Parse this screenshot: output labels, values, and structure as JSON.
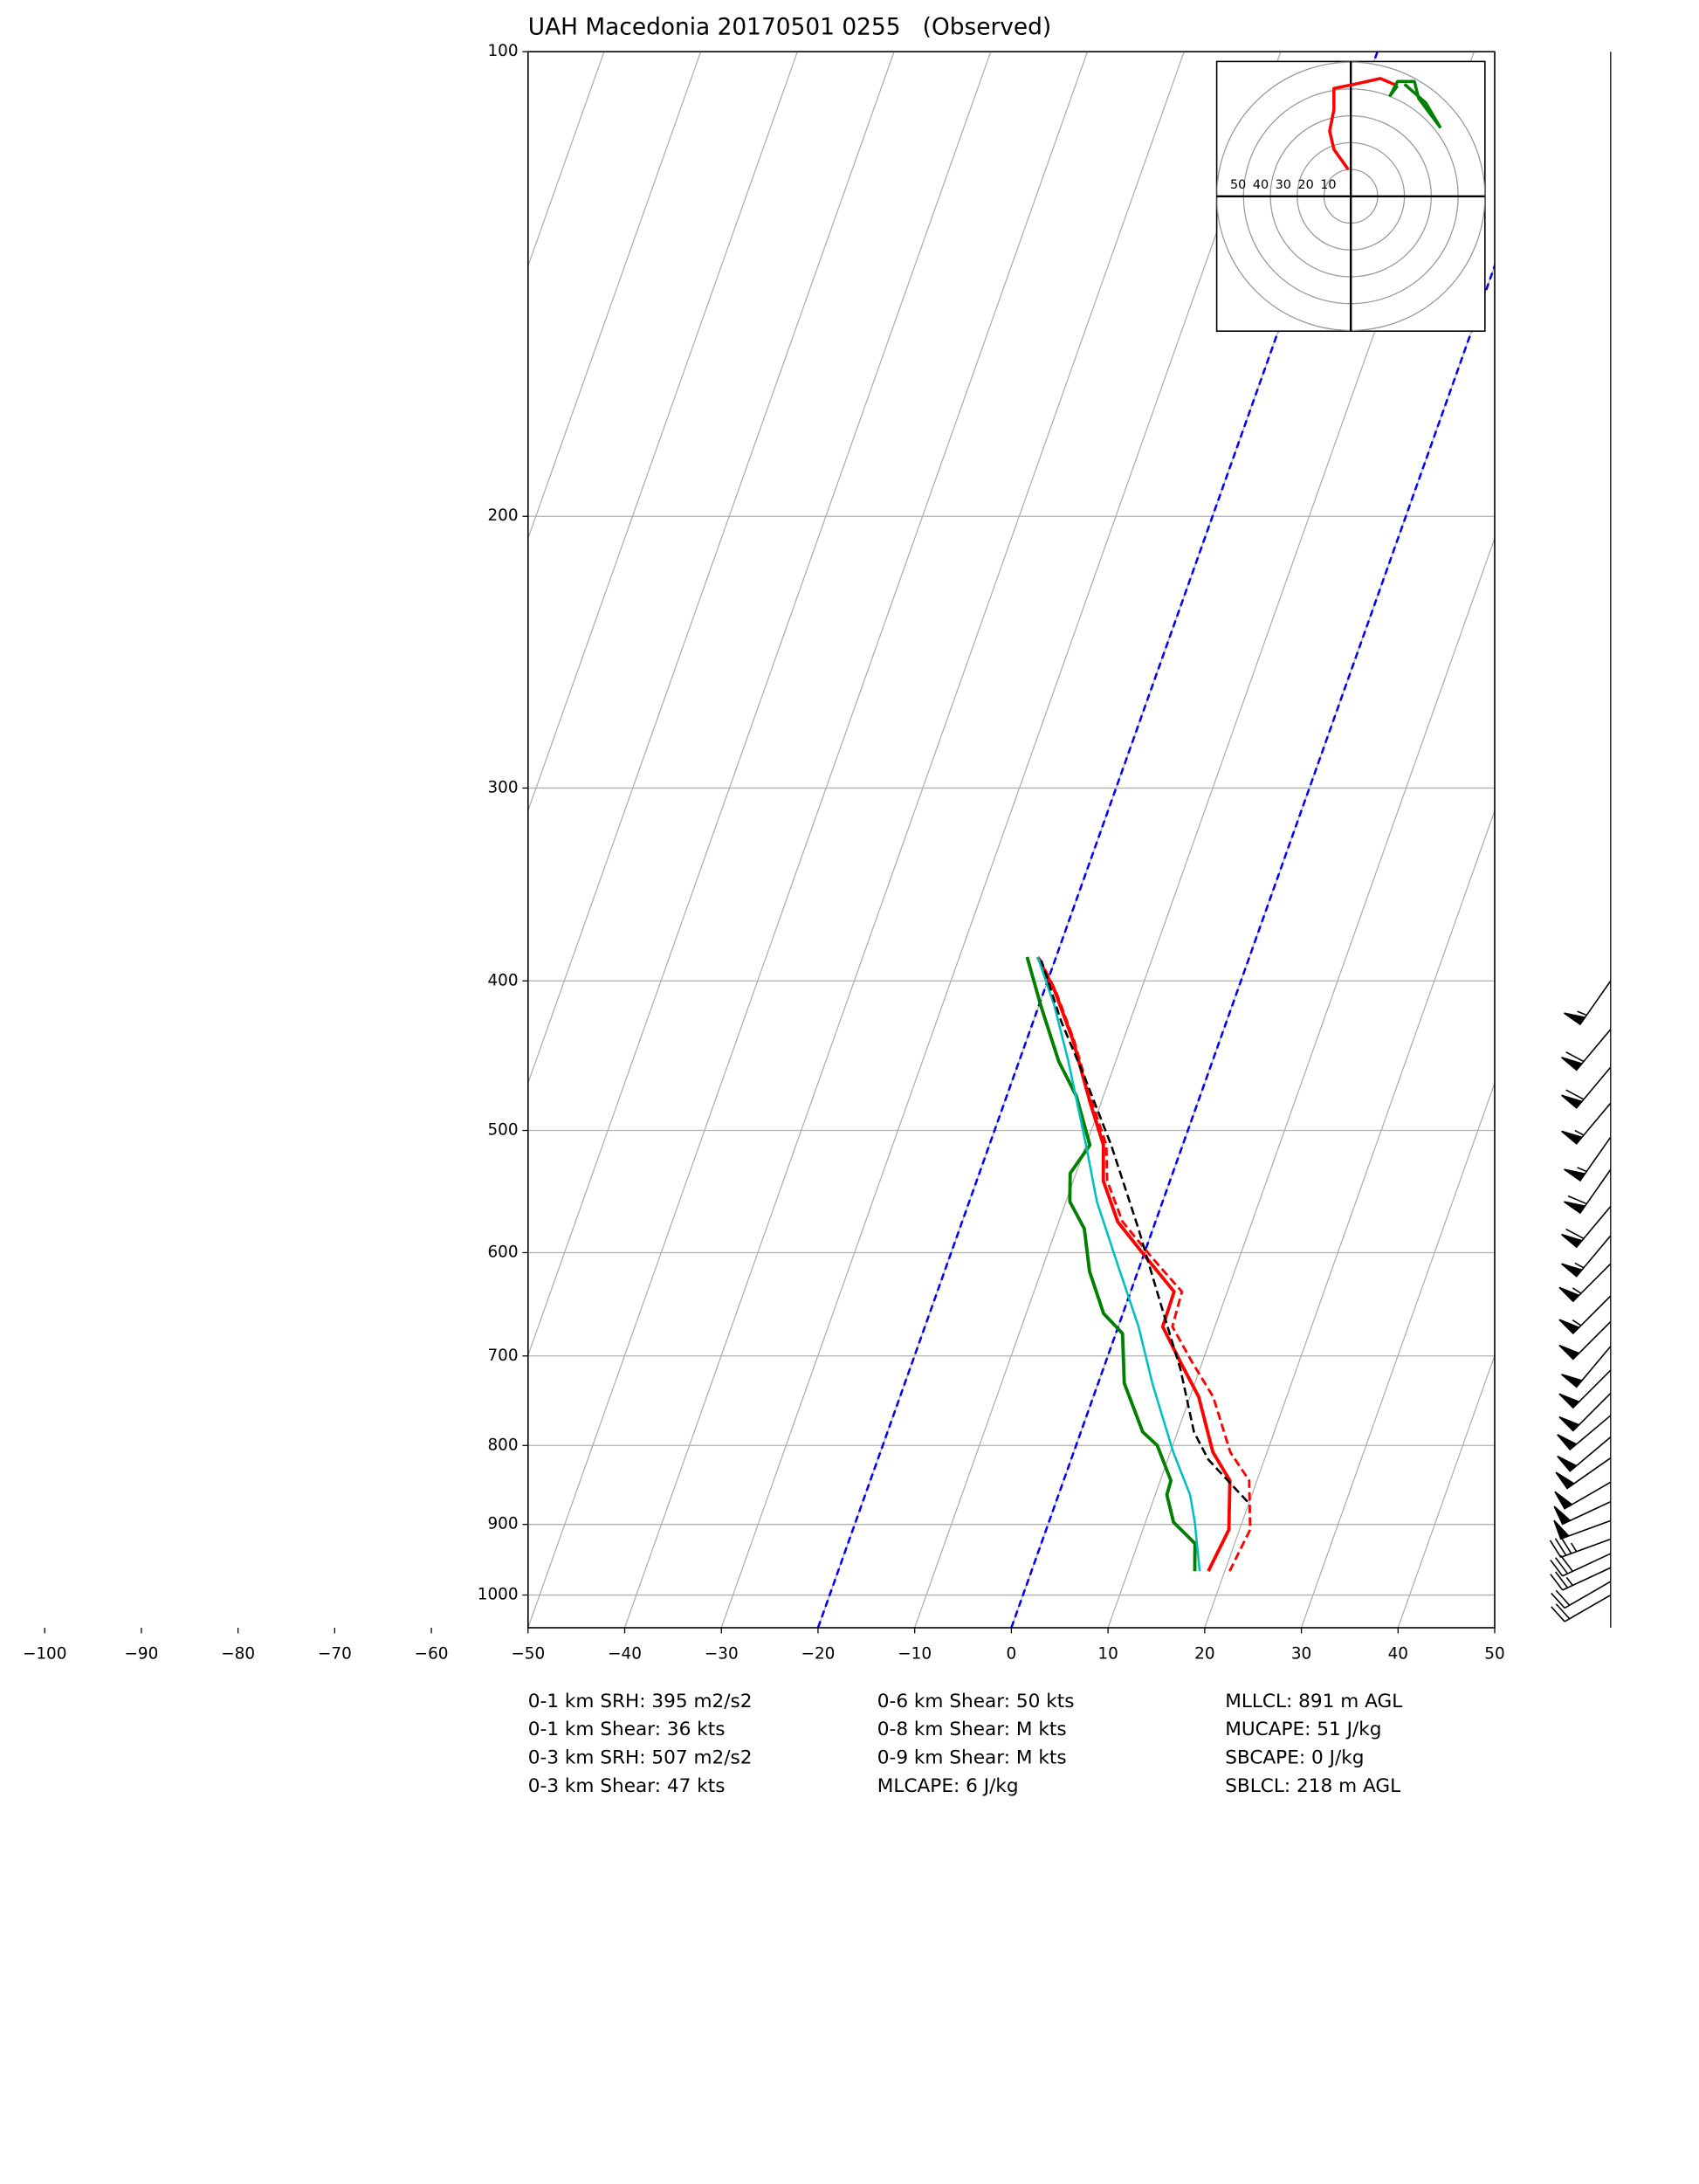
{
  "chart_data": {
    "type": "skewt",
    "title": "UAH Macedonia 20170501 0255   (Observed)",
    "xlim": [
      -50,
      50
    ],
    "ylim": [
      1050,
      100
    ],
    "log_scale_y": true,
    "grid": true,
    "xticks": [
      {
        "value": -100,
        "label": "−100"
      },
      {
        "value": -90,
        "label": "−90"
      },
      {
        "value": -80,
        "label": "−80"
      },
      {
        "value": -70,
        "label": "−70"
      },
      {
        "value": -60,
        "label": "−60"
      },
      {
        "value": -50,
        "label": "−50"
      },
      {
        "value": -40,
        "label": "−40"
      },
      {
        "value": -30,
        "label": "−30"
      },
      {
        "value": -20,
        "label": "−20"
      },
      {
        "value": -10,
        "label": "−10"
      },
      0,
      10,
      20,
      30,
      40,
      50
    ],
    "yticks": [
      100,
      200,
      300,
      400,
      500,
      600,
      700,
      800,
      900,
      1000
    ],
    "special_isotherms": {
      "values": [
        -20,
        0
      ],
      "color": "#0000ff"
    },
    "series": [
      {
        "color": "#ff0000",
        "dash": false,
        "width": 2.4,
        "pressure": [
          965,
          907,
          843,
          808,
          744,
          706,
          670,
          636,
          604,
          573,
          539,
          511,
          480,
          437,
          406,
          386
        ],
        "values": [
          18.3,
          18.9,
          17.2,
          14.4,
          10.9,
          7.7,
          4.6,
          4.5,
          0.3,
          -3.9,
          -6.9,
          -8.2,
          -11.1,
          -15.2,
          -18.9,
          -21.9
        ]
      },
      {
        "color": "#ff0000",
        "dash": true,
        "width": 1.8,
        "pressure": [
          965,
          907,
          843,
          808,
          744,
          706,
          670,
          636,
          604,
          573,
          539,
          511,
          480,
          437,
          406,
          386
        ],
        "values": [
          20.5,
          21.1,
          19.2,
          16.2,
          12.4,
          8.9,
          5.6,
          5.3,
          0.9,
          -3.4,
          -6.5,
          -7.9,
          -10.9,
          -15.1,
          -18.8,
          -21.8
        ]
      },
      {
        "color": "#008000",
        "dash": false,
        "width": 2.4,
        "pressure": [
          965,
          926,
          897,
          861,
          843,
          800,
          784,
          729,
          677,
          657,
          617,
          579,
          556,
          533,
          511,
          475,
          451,
          415,
          386
        ],
        "values": [
          16.9,
          15.9,
          12.9,
          11.2,
          11.1,
          8.4,
          6.4,
          2.7,
          0.7,
          -2.0,
          -5.0,
          -7.1,
          -9.6,
          -10.6,
          -9.6,
          -12.8,
          -15.9,
          -19.8,
          -23.0
        ]
      },
      {
        "color": "#00bfbf",
        "dash": false,
        "width": 1.6,
        "pressure": [
          965,
          897,
          861,
          808,
          729,
          670,
          610,
          556,
          511,
          451,
          415,
          386
        ],
        "values": [
          17.4,
          15.1,
          13.6,
          10.3,
          5.6,
          2.1,
          -2.4,
          -6.8,
          -10.0,
          -14.9,
          -18.4,
          -21.9
        ]
      },
      {
        "color": "#000000",
        "dash": true,
        "width": 1.6,
        "pressure": [
          870,
          817,
          784,
          714,
          644,
          579,
          511,
          463,
          425,
          388
        ],
        "values": [
          19.8,
          14.2,
          11.7,
          8.0,
          3.3,
          -1.5,
          -7.4,
          -12.5,
          -17.1,
          -21.4
        ]
      }
    ],
    "winds": {
      "pressure": [
        400,
        430,
        455,
        480,
        505,
        530,
        560,
        585,
        610,
        640,
        665,
        690,
        715,
        740,
        765,
        790,
        815,
        845,
        870,
        895,
        920,
        940,
        960,
        980,
        1000
      ],
      "direction": [
        215,
        220,
        220,
        220,
        215,
        215,
        220,
        220,
        225,
        225,
        225,
        220,
        225,
        225,
        230,
        230,
        235,
        240,
        245,
        250,
        250,
        245,
        245,
        240,
        240
      ],
      "speed": [
        55,
        60,
        60,
        55,
        55,
        60,
        60,
        55,
        55,
        55,
        50,
        50,
        50,
        50,
        50,
        50,
        50,
        50,
        50,
        50,
        35,
        30,
        25,
        20,
        20
      ]
    },
    "hodograph": {
      "xlim": [
        -50,
        50
      ],
      "ylim": [
        -50,
        50
      ],
      "rings": [
        10,
        20,
        30,
        40,
        50
      ],
      "series": [
        {
          "color": "#ff0000",
          "u": [
            -1,
            -6.3,
            -7.9,
            -6.3,
            -6.3,
            1.6,
            11,
            17.4
          ],
          "v": [
            10,
            17.4,
            24.2,
            32.1,
            40,
            41.6,
            43.7,
            41
          ]
        },
        {
          "color": "#008000",
          "u": [
            17.4,
            14.7,
            17.4,
            23.7,
            25.3,
            33.2,
            27.9,
            20
          ],
          "v": [
            41,
            37.4,
            42.6,
            42.6,
            36.3,
            25.8,
            34.7,
            41.6
          ]
        }
      ]
    },
    "stats": [
      [
        "0-1 km SRH: 395 m2/s2",
        "0-1 km Shear: 36 kts",
        "0-3 km SRH: 507 m2/s2",
        "0-3 km Shear: 47 kts"
      ],
      [
        "0-6 km Shear: 50 kts",
        "0-8 km Shear: M kts",
        "0-9 km Shear: M kts",
        "MLCAPE: 6 J/kg"
      ],
      [
        "MLLCL: 891 m AGL",
        "MUCAPE: 51 J/kg",
        "SBCAPE: 0 J/kg",
        "SBLCL: 218 m AGL"
      ]
    ]
  }
}
